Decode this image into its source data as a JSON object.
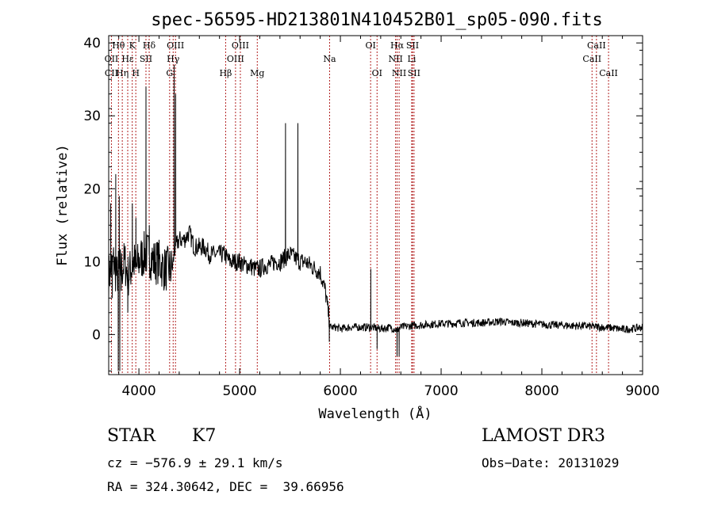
{
  "chart_data": {
    "type": "line",
    "title": "spec-56595-HD213801N410452B01_sp05-090.fits",
    "xlabel": "Wavelength (Å)",
    "ylabel": "Flux (relative)",
    "xlim": [
      3700,
      9000
    ],
    "ylim": [
      -5.5,
      41
    ],
    "x_ticks": [
      4000,
      5000,
      6000,
      7000,
      8000,
      9000
    ],
    "y_ticks": [
      0,
      10,
      20,
      30,
      40
    ],
    "grid": false,
    "line_color": "#000000",
    "marker_color": "#b22222",
    "spectrum_anchors": {
      "x": [
        3700,
        3750,
        3780,
        3800,
        3830,
        3860,
        3890,
        3920,
        3950,
        3970,
        4000,
        4050,
        4100,
        4150,
        4200,
        4250,
        4300,
        4330,
        4360,
        4400,
        4450,
        4500,
        4550,
        4600,
        4650,
        4700,
        4750,
        4800,
        4850,
        4900,
        4950,
        5000,
        5050,
        5100,
        5150,
        5200,
        5250,
        5300,
        5350,
        5400,
        5450,
        5500,
        5550,
        5600,
        5650,
        5700,
        5750,
        5800,
        5850,
        5880,
        5900,
        5950,
        6000,
        6100,
        6200,
        6300,
        6400,
        6500,
        6560,
        6600,
        6700,
        6800,
        6900,
        7000,
        7100,
        7200,
        7300,
        7400,
        7500,
        7600,
        7700,
        7800,
        7900,
        8000,
        8100,
        8200,
        8300,
        8400,
        8500,
        8600,
        8700,
        8800,
        8900,
        9000
      ],
      "y": [
        8,
        10,
        8,
        9,
        9,
        10,
        8,
        9,
        10,
        9,
        10,
        11,
        11,
        10,
        10,
        9,
        9,
        9,
        12,
        13,
        13,
        14,
        12,
        12,
        12,
        11,
        11,
        11,
        11,
        10,
        10,
        10,
        9.5,
        9.5,
        9,
        9,
        9.5,
        9.5,
        10,
        10,
        10.5,
        11,
        10.5,
        10,
        10,
        9.5,
        9,
        8.5,
        6,
        3,
        1,
        1,
        0.8,
        1,
        1,
        1,
        0.8,
        1,
        0.6,
        1,
        1.2,
        1.3,
        1.4,
        1.5,
        1.5,
        1.6,
        1.6,
        1.6,
        1.7,
        1.8,
        1.6,
        1.6,
        1.5,
        1.4,
        1.3,
        1.3,
        1.2,
        1.2,
        1.1,
        1,
        0.9,
        0.7,
        0.8,
        1
      ]
    },
    "spectrum_spikes": {
      "x": [
        3720,
        3735,
        3770,
        3795,
        3805,
        3810,
        3825,
        3890,
        3935,
        3970,
        4070,
        4103,
        4350,
        4365,
        5455,
        5578,
        5890,
        6302,
        6364,
        6563,
        6583
      ],
      "y": [
        18,
        5,
        22,
        -5,
        19,
        -5,
        6,
        3,
        18,
        16,
        34,
        15,
        37,
        33,
        29,
        29,
        -1,
        9,
        -2,
        -3,
        -3
      ]
    },
    "spectral_lines": [
      {
        "label": "Hθ",
        "wavelength": 3797,
        "row": 0
      },
      {
        "label": "OII",
        "wavelength": 3727,
        "row": 1
      },
      {
        "label": "CII",
        "wavelength": 3727,
        "row": 2
      },
      {
        "label": "Hε",
        "wavelength": 3889,
        "row": 1
      },
      {
        "label": "Hη",
        "wavelength": 3835,
        "row": 2
      },
      {
        "label": "K",
        "wavelength": 3934,
        "row": 0
      },
      {
        "label": "H",
        "wavelength": 3969,
        "row": 2
      },
      {
        "label": "SII",
        "wavelength": 4070,
        "row": 1
      },
      {
        "label": "Hδ",
        "wavelength": 4102,
        "row": 0
      },
      {
        "label": "OIII",
        "wavelength": 4363,
        "row": 0
      },
      {
        "label": "Hγ",
        "wavelength": 4340,
        "row": 1
      },
      {
        "label": "G",
        "wavelength": 4305,
        "row": 2
      },
      {
        "label": "Hβ",
        "wavelength": 4861,
        "row": 2
      },
      {
        "label": "OIII",
        "wavelength": 4959,
        "row": 1
      },
      {
        "label": "OIII",
        "wavelength": 5007,
        "row": 0
      },
      {
        "label": "Mg",
        "wavelength": 5175,
        "row": 2
      },
      {
        "label": "Na",
        "wavelength": 5893,
        "row": 1
      },
      {
        "label": "OI",
        "wavelength": 6300,
        "row": 0
      },
      {
        "label": "OI",
        "wavelength": 6364,
        "row": 2
      },
      {
        "label": "Hα",
        "wavelength": 6563,
        "row": 0
      },
      {
        "label": "NII",
        "wavelength": 6548,
        "row": 1
      },
      {
        "label": "NII",
        "wavelength": 6583,
        "row": 2
      },
      {
        "label": "SII",
        "wavelength": 6716,
        "row": 0
      },
      {
        "label": "Li",
        "wavelength": 6708,
        "row": 1
      },
      {
        "label": "SII",
        "wavelength": 6731,
        "row": 2
      },
      {
        "label": "CaII",
        "wavelength": 8542,
        "row": 0
      },
      {
        "label": "CaII",
        "wavelength": 8498,
        "row": 1
      },
      {
        "label": "CaII",
        "wavelength": 8662,
        "row": 2
      }
    ]
  },
  "info": {
    "class": "STAR",
    "subclass": "K7",
    "survey": "LAMOST DR3",
    "cz": "cz = −576.9 ± 29.1 km/s",
    "obs_date": "Obs−Date: 20131029",
    "coords": "RA = 324.30642, DEC =  39.66956"
  }
}
